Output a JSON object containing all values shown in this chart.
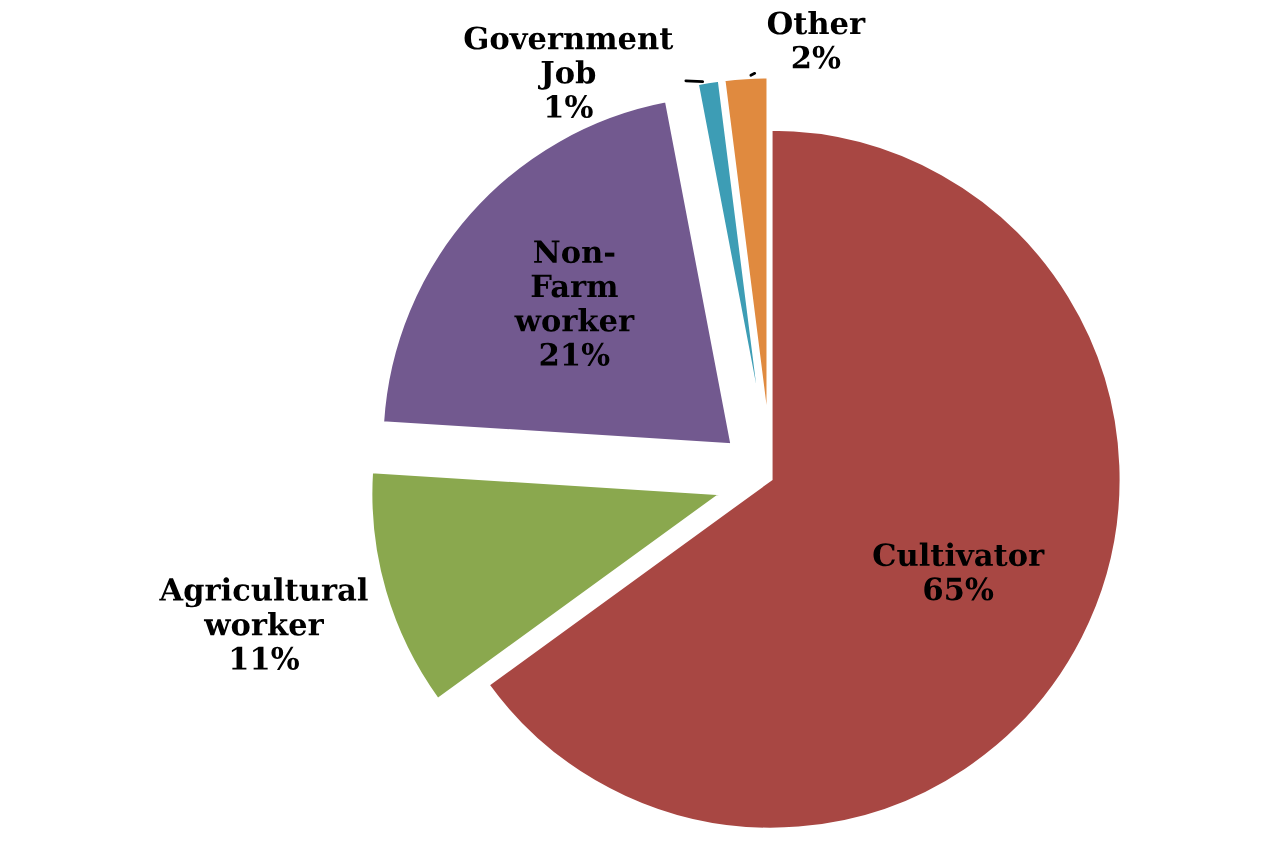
{
  "chart_data": {
    "type": "pie",
    "categories": [
      "Cultivator",
      "Agricultural\nworker",
      "Non-\nFarm\nworker",
      "Government\nJob",
      "Other"
    ],
    "values": [
      65,
      11,
      21,
      1,
      2
    ],
    "colors": [
      "#a84743",
      "#8aa84e",
      "#72598f",
      "#3d9db5",
      "#e08a3f"
    ],
    "value_labels": [
      "65%",
      "11%",
      "21%",
      "1%",
      "2%"
    ],
    "legend": false
  }
}
